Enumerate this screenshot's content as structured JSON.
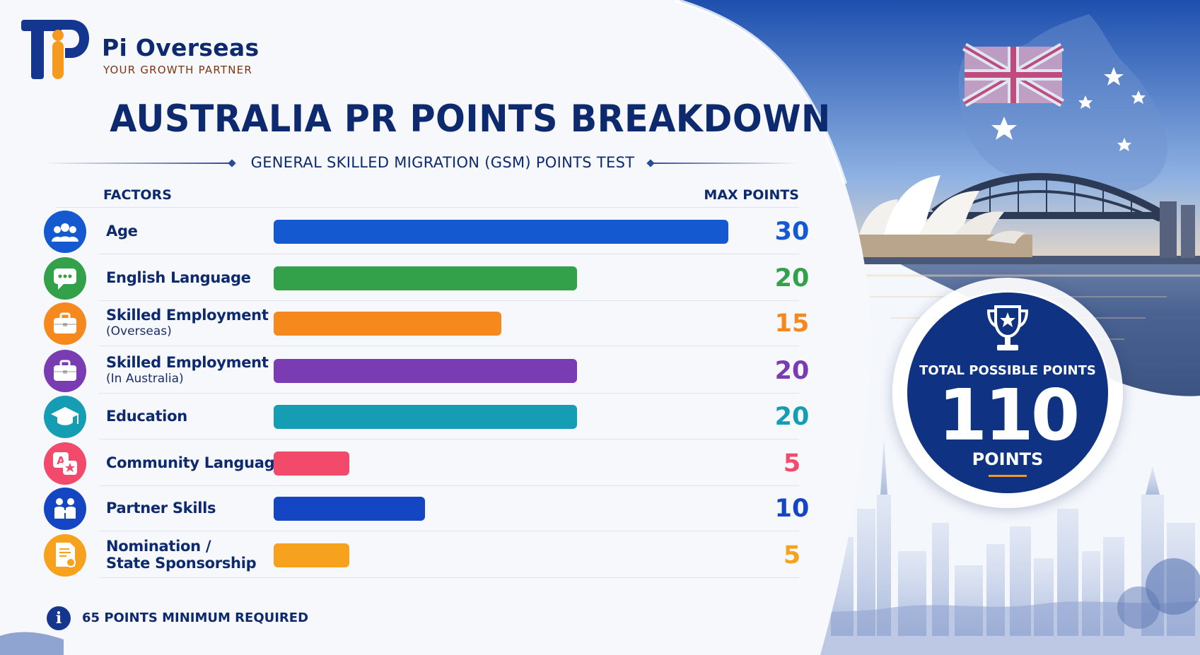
{
  "brand": {
    "name": "Pi Overseas",
    "tagline": "YOUR GROWTH PARTNER"
  },
  "header": {
    "title": "AUSTRALIA PR POINTS BREAKDOWN",
    "subtitle": "GENERAL SKILLED MIGRATION (GSM) POINTS TEST"
  },
  "columns": {
    "factors": "FACTORS",
    "max_points": "MAX POINTS"
  },
  "chart_data": {
    "type": "bar",
    "orientation": "horizontal",
    "title": "AUSTRALIA PR POINTS BREAKDOWN",
    "subtitle": "GENERAL SKILLED MIGRATION (GSM) POINTS TEST",
    "xlim": [
      0,
      30
    ],
    "grid": false,
    "legend": "none",
    "rows": [
      {
        "label": "Age",
        "sub": "",
        "value": 30,
        "color": "#1559d1",
        "icon": "users-icon"
      },
      {
        "label": "English Language",
        "sub": "",
        "value": 20,
        "color": "#33a04a",
        "icon": "chat-icon"
      },
      {
        "label": "Skilled Employment",
        "sub": "(Overseas)",
        "value": 15,
        "color": "#f5891e",
        "icon": "briefcase-icon"
      },
      {
        "label": "Skilled Employment",
        "sub": "(In Australia)",
        "value": 20,
        "color": "#7a3cb2",
        "icon": "briefcase-icon"
      },
      {
        "label": "Education",
        "sub": "",
        "value": 20,
        "color": "#159eb3",
        "icon": "graduation-cap-icon"
      },
      {
        "label": "Community Language",
        "sub": "",
        "value": 5,
        "color": "#f24a6b",
        "icon": "translate-icon"
      },
      {
        "label": "Partner Skills",
        "sub": "",
        "value": 10,
        "color": "#1446c4",
        "icon": "partners-icon"
      },
      {
        "label": "Nomination /",
        "sub": "State Sponsorship",
        "value": 5,
        "color": "#f7a21e",
        "icon": "certificate-icon"
      }
    ]
  },
  "total": {
    "label": "TOTAL POSSIBLE POINTS",
    "value": "110",
    "unit": "POINTS",
    "icon": "trophy-icon"
  },
  "note": {
    "text": "65 POINTS MINIMUM REQUIRED",
    "icon": "info-icon"
  },
  "colors": {
    "navy": "#0e2a6e",
    "badge": "#0f3283",
    "accent": "#f59a1e"
  }
}
